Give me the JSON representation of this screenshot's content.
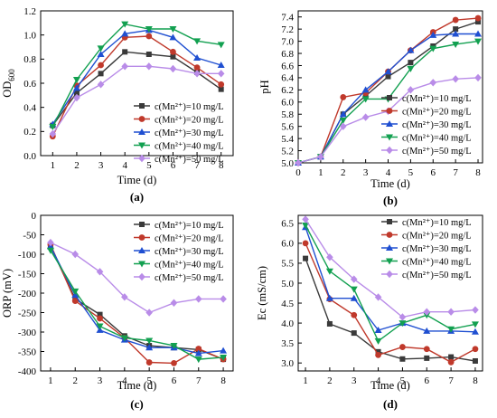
{
  "figure": {
    "colors": [
      "#3a3a3a",
      "#c0392b",
      "#1f4fd1",
      "#12a050",
      "#b98ce8"
    ],
    "markers": [
      "square",
      "circle",
      "triangle-up",
      "triangle-down",
      "diamond"
    ]
  },
  "chart_data": [
    {
      "id": "a",
      "type": "line",
      "panel_label": "(a)",
      "xlabel": "Time (d)",
      "ylabel": "OD",
      "ylabel_sub": "600",
      "x": [
        1,
        2,
        3,
        4,
        5,
        6,
        7,
        8
      ],
      "xlim": [
        0.5,
        8.5
      ],
      "ylim": [
        0,
        1.2
      ],
      "xticks": [
        1,
        2,
        3,
        4,
        5,
        6,
        7,
        8
      ],
      "yticks": [
        0.0,
        0.2,
        0.4,
        0.6,
        0.8,
        1.0,
        1.2
      ],
      "yticklabels": [
        "0.0",
        "0.2",
        "0.4",
        "0.6",
        "0.8",
        "1.0",
        "1.2"
      ],
      "legend_position": "center-right",
      "series": [
        {
          "name": "c(Mn²⁺)=10 mg/L",
          "values": [
            0.25,
            0.52,
            0.68,
            0.86,
            0.84,
            0.82,
            0.69,
            0.55
          ]
        },
        {
          "name": "c(Mn²⁺)=20 mg/L",
          "values": [
            0.16,
            0.58,
            0.75,
            0.98,
            0.99,
            0.86,
            0.73,
            0.59
          ]
        },
        {
          "name": "c(Mn²⁺)=30 mg/L",
          "values": [
            0.26,
            0.56,
            0.84,
            1.01,
            1.04,
            0.98,
            0.81,
            0.75
          ]
        },
        {
          "name": "c(Mn²⁺)=40 mg/L",
          "values": [
            0.24,
            0.63,
            0.89,
            1.09,
            1.05,
            1.05,
            0.95,
            0.92
          ]
        },
        {
          "name": "c(Mn²⁺)=50 mg/L",
          "values": [
            0.18,
            0.48,
            0.59,
            0.74,
            0.74,
            0.72,
            0.68,
            0.68
          ]
        }
      ]
    },
    {
      "id": "b",
      "type": "line",
      "panel_label": "(b)",
      "xlabel": "Time (d)",
      "ylabel": "pH",
      "x": [
        0,
        1,
        2,
        3,
        4,
        5,
        6,
        7,
        8
      ],
      "xlim": [
        0,
        8.2
      ],
      "ylim": [
        5.0,
        7.5
      ],
      "xticks": [
        0,
        1,
        2,
        3,
        4,
        5,
        6,
        7,
        8
      ],
      "yticks": [
        5.0,
        5.2,
        5.4,
        5.6,
        5.8,
        6.0,
        6.2,
        6.4,
        6.6,
        6.8,
        7.0,
        7.2,
        7.4
      ],
      "yticklabels": [
        "5.0",
        "5.2",
        "5.4",
        "5.6",
        "5.8",
        "6.0",
        "6.2",
        "6.4",
        "6.6",
        "6.8",
        "7.0",
        "7.2",
        "7.4"
      ],
      "legend_position": "bottom-right",
      "series": [
        {
          "name": "c(Mn²⁺)=10 mg/L",
          "values": [
            5.0,
            5.1,
            5.8,
            6.1,
            6.42,
            6.65,
            6.92,
            7.2,
            7.32
          ]
        },
        {
          "name": "c(Mn²⁺)=20 mg/L",
          "values": [
            5.0,
            5.1,
            6.08,
            6.15,
            6.5,
            6.85,
            7.15,
            7.35,
            7.38
          ]
        },
        {
          "name": "c(Mn²⁺)=30 mg/L",
          "values": [
            5.0,
            5.1,
            5.8,
            6.2,
            6.5,
            6.85,
            7.1,
            7.12,
            7.12
          ]
        },
        {
          "name": "c(Mn²⁺)=40 mg/L",
          "values": [
            5.0,
            5.1,
            5.7,
            6.05,
            6.05,
            6.55,
            6.88,
            6.95,
            7.0
          ]
        },
        {
          "name": "c(Mn²⁺)=50 mg/L",
          "values": [
            5.0,
            5.1,
            5.6,
            5.75,
            5.85,
            6.2,
            6.32,
            6.38,
            6.4
          ]
        }
      ]
    },
    {
      "id": "c",
      "type": "line",
      "panel_label": "(c)",
      "xlabel": "Time (d)",
      "ylabel": "ORP (mV)",
      "x": [
        1,
        2,
        3,
        4,
        5,
        6,
        7,
        8
      ],
      "xlim": [
        0.6,
        8.4
      ],
      "ylim": [
        -400,
        0
      ],
      "xticks": [
        1,
        2,
        3,
        4,
        5,
        6,
        7,
        8
      ],
      "yticks": [
        0,
        -50,
        -100,
        -150,
        -200,
        -250,
        -300,
        -350,
        -400
      ],
      "yticklabels": [
        "0",
        "-50",
        "-100",
        "-150",
        "-200",
        "-250",
        "-300",
        "-350",
        "-400"
      ],
      "legend_position": "top-right",
      "series": [
        {
          "name": "c(Mn²⁺)=10 mg/L",
          "values": [
            -80,
            -215,
            -255,
            -310,
            -335,
            -340,
            -345,
            -370
          ]
        },
        {
          "name": "c(Mn²⁺)=20 mg/L",
          "values": [
            -75,
            -220,
            -265,
            -315,
            -378,
            -380,
            -343,
            -370
          ]
        },
        {
          "name": "c(Mn²⁺)=30 mg/L",
          "values": [
            -80,
            -205,
            -295,
            -320,
            -340,
            -340,
            -355,
            -348
          ]
        },
        {
          "name": "c(Mn²⁺)=40 mg/L",
          "values": [
            -90,
            -195,
            -285,
            -315,
            -322,
            -335,
            -370,
            -365
          ]
        },
        {
          "name": "c(Mn²⁺)=50 mg/L",
          "values": [
            -70,
            -100,
            -145,
            -210,
            -250,
            -225,
            -215,
            -215
          ]
        }
      ]
    },
    {
      "id": "d",
      "type": "line",
      "panel_label": "(d)",
      "xlabel": "Time (d)",
      "ylabel": "Ec (mS/cm)",
      "x": [
        1,
        2,
        3,
        4,
        5,
        6,
        7,
        8
      ],
      "xlim": [
        0.7,
        8.3
      ],
      "ylim": [
        2.8,
        6.7
      ],
      "xticks": [
        1,
        2,
        3,
        4,
        5,
        6,
        7,
        8
      ],
      "yticks": [
        3.0,
        3.5,
        4.0,
        4.5,
        5.0,
        5.5,
        6.0,
        6.5
      ],
      "yticklabels": [
        "3.0",
        "3.5",
        "4.0",
        "4.5",
        "5.0",
        "5.5",
        "6.0",
        "6.5"
      ],
      "legend_position": "top-right",
      "series": [
        {
          "name": "c(Mn²⁺)=10 mg/L",
          "values": [
            5.62,
            3.98,
            3.75,
            3.28,
            3.1,
            3.12,
            3.15,
            3.05
          ]
        },
        {
          "name": "c(Mn²⁺)=20 mg/L",
          "values": [
            6.0,
            4.6,
            4.2,
            3.2,
            3.4,
            3.35,
            3.02,
            3.35
          ]
        },
        {
          "name": "c(Mn²⁺)=30 mg/L",
          "values": [
            6.4,
            4.62,
            4.62,
            3.82,
            4.0,
            3.8,
            3.8,
            3.78
          ]
        },
        {
          "name": "c(Mn²⁺)=40 mg/L",
          "values": [
            6.45,
            5.3,
            4.85,
            3.55,
            4.0,
            4.2,
            3.85,
            3.97
          ]
        },
        {
          "name": "c(Mn²⁺)=50 mg/L",
          "values": [
            6.6,
            5.65,
            5.1,
            4.65,
            4.15,
            4.28,
            4.28,
            4.33
          ]
        }
      ]
    }
  ]
}
